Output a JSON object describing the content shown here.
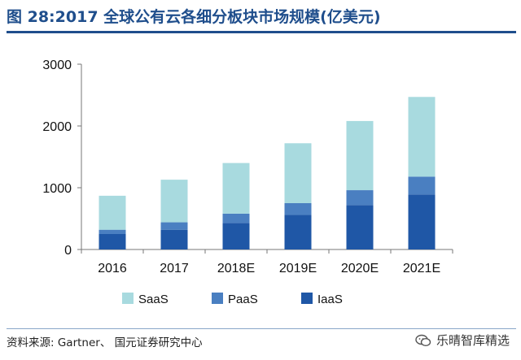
{
  "header": {
    "title": "图 28:2017 全球公有云各细分板块市场规模(亿美元)"
  },
  "footer": {
    "source": "资料来源: Gartner、 国元证券研究中心",
    "watermark": "乐晴智库精选"
  },
  "colors": {
    "title": "#1f4e8c",
    "SaaS": "#a8dadf",
    "PaaS": "#4a7fc1",
    "IaaS": "#1f57a6"
  },
  "chart_data": {
    "type": "bar",
    "stacked": true,
    "categories": [
      "2016",
      "2017",
      "2018E",
      "2019E",
      "2020E",
      "2021E"
    ],
    "series": [
      {
        "name": "IaaS",
        "values": [
          250,
          320,
          430,
          560,
          720,
          890
        ]
      },
      {
        "name": "PaaS",
        "values": [
          70,
          120,
          150,
          190,
          240,
          290
        ]
      },
      {
        "name": "SaaS",
        "values": [
          550,
          690,
          820,
          970,
          1120,
          1290
        ]
      }
    ],
    "yticks": [
      "0",
      "1000",
      "2000",
      "3000"
    ],
    "ylim": [
      0,
      3000
    ],
    "legend": {
      "position": "bottom-left",
      "labels": [
        "SaaS",
        "PaaS",
        "IaaS"
      ]
    },
    "grid": false
  }
}
